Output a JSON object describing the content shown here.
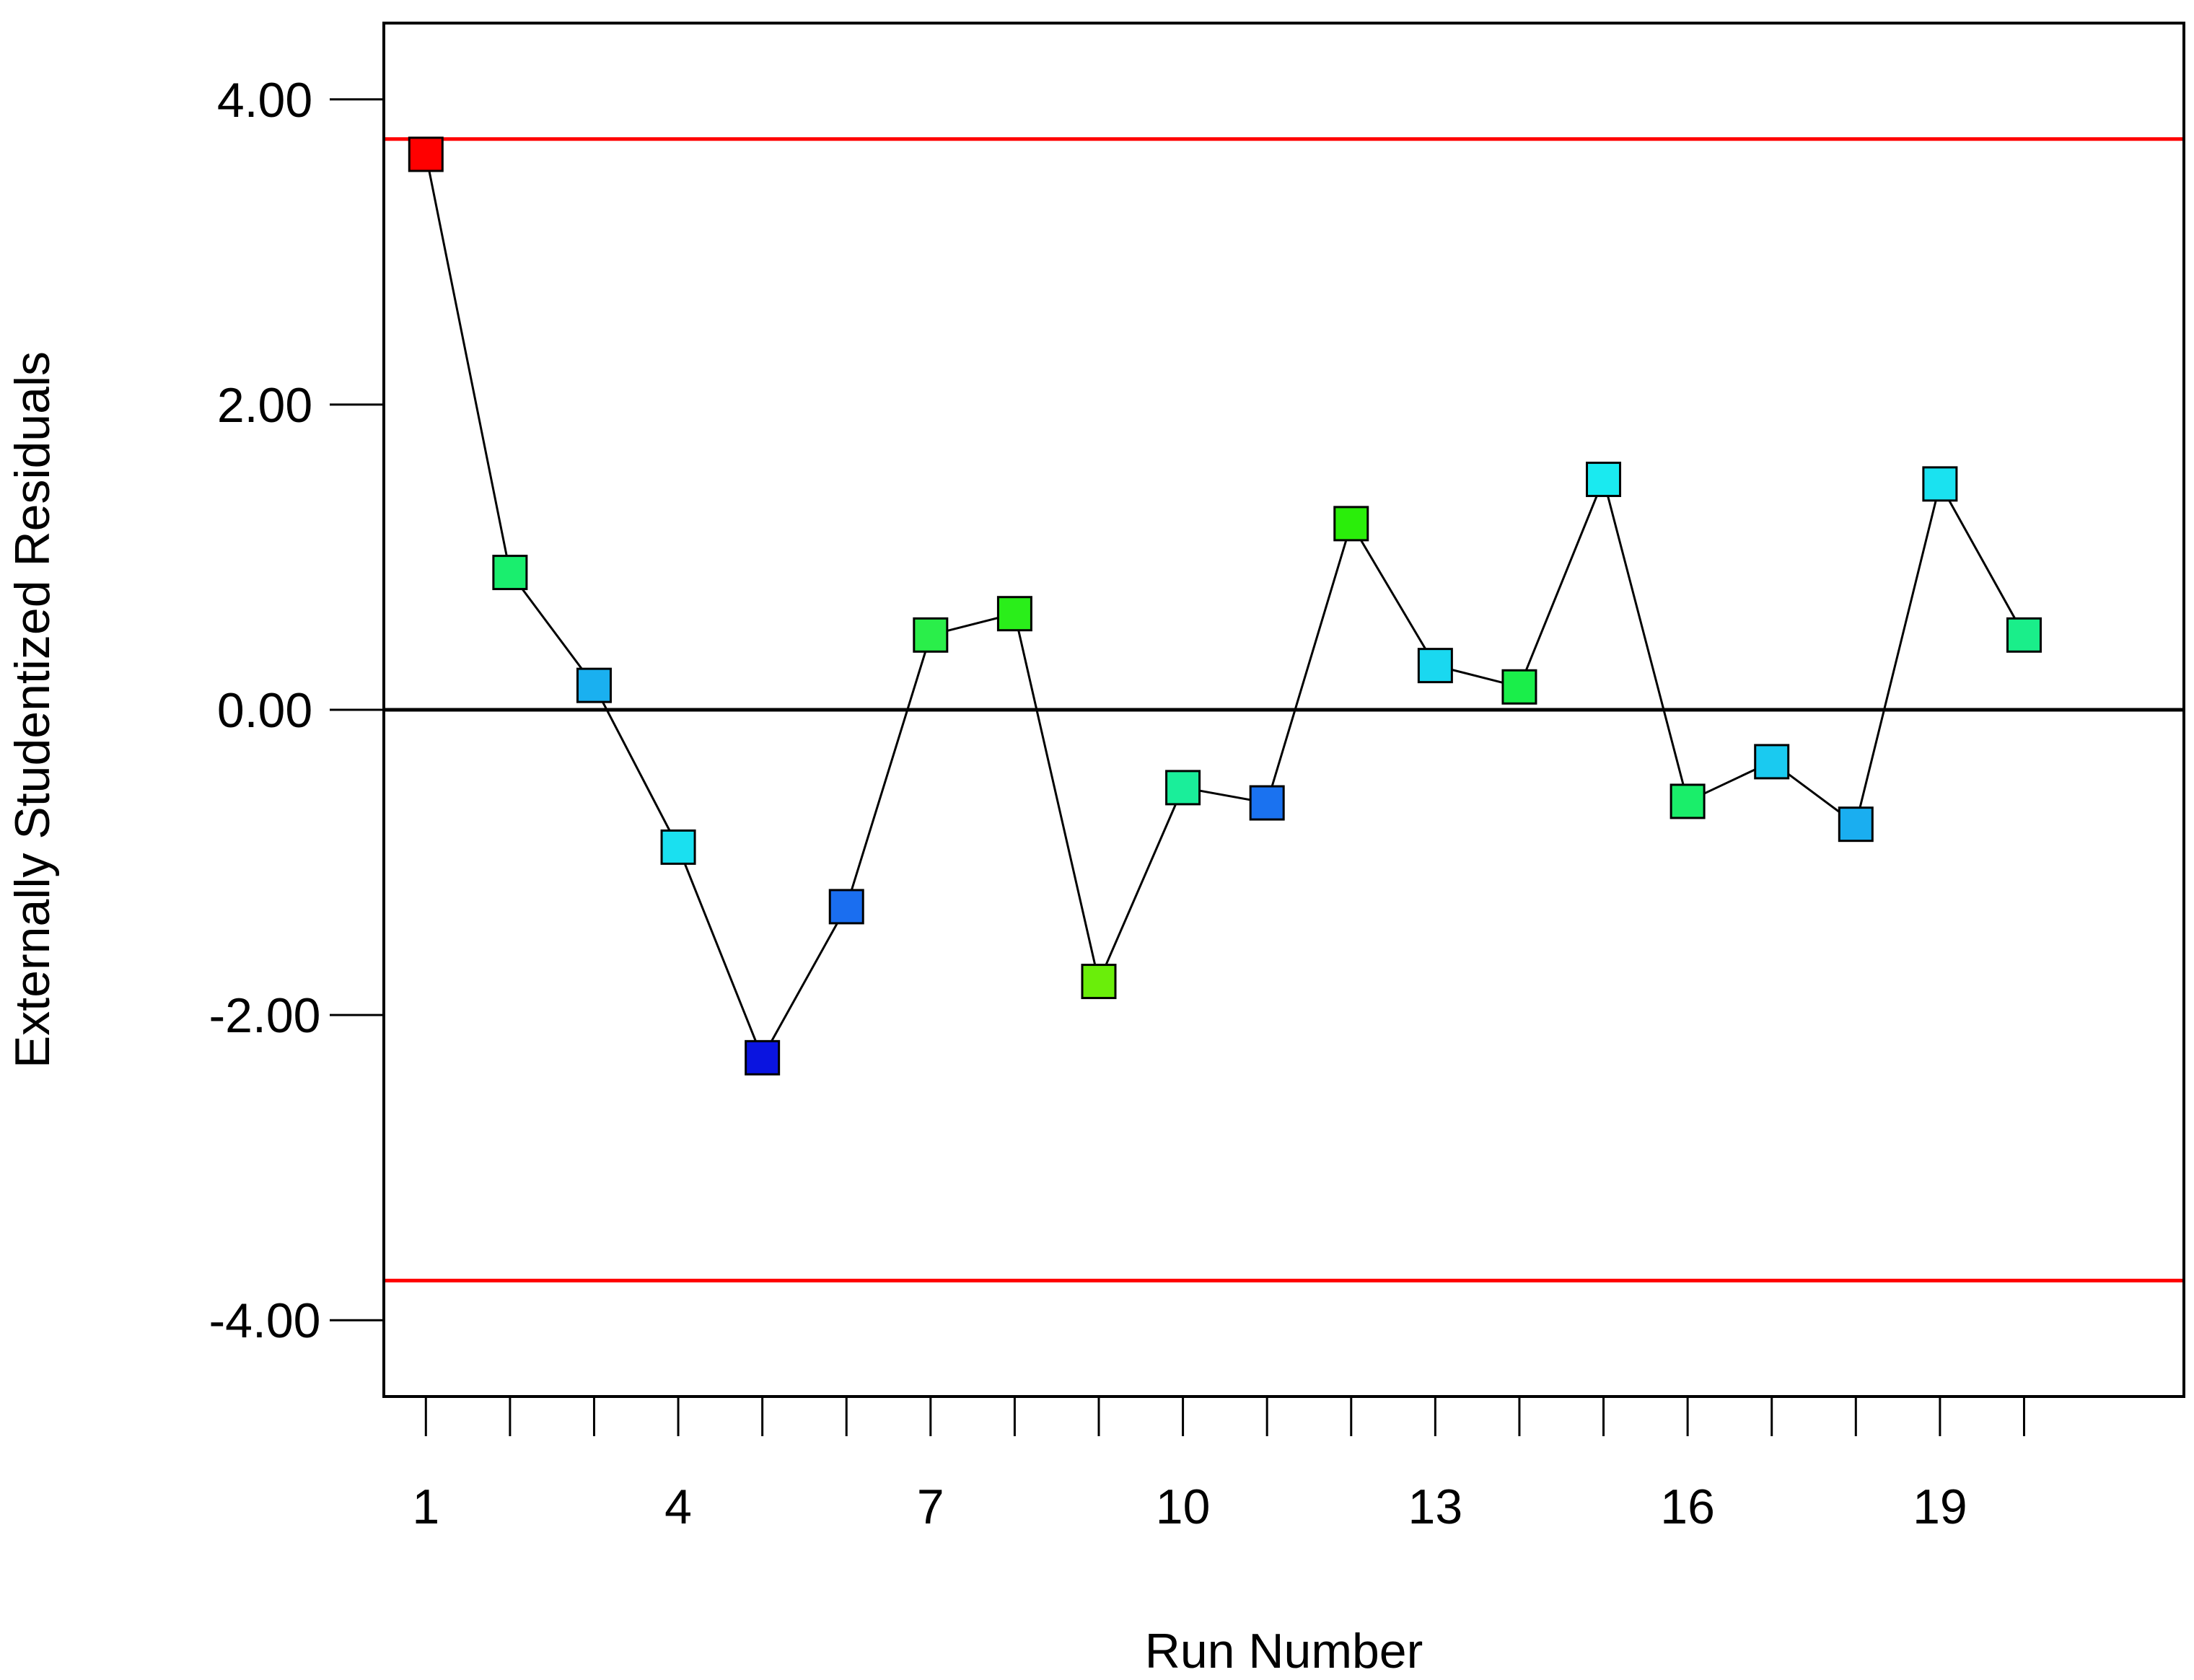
{
  "chart_data": {
    "type": "line",
    "title": "",
    "xlabel": "Run Number",
    "ylabel": "Externally Studentized Residuals",
    "xlim": [
      0.5,
      21.9
    ],
    "ylim": [
      -4.5,
      4.5
    ],
    "x_tick_labels": [
      "1",
      "4",
      "7",
      "10",
      "13",
      "16",
      "19"
    ],
    "y_tick_labels": [
      "4.00",
      "2.00",
      "0.00",
      "-2.00",
      "-4.00"
    ],
    "x_ticks": [
      1,
      2,
      3,
      4,
      5,
      6,
      7,
      8,
      9,
      10,
      11,
      12,
      13,
      14,
      15,
      16,
      17,
      18,
      19,
      20
    ],
    "y_ticks": [
      4,
      2,
      0,
      -2,
      -4
    ],
    "reference_lines": [
      {
        "name": "upper limit",
        "y": 3.74,
        "color": "#ff0000"
      },
      {
        "name": "lower limit",
        "y": -3.74,
        "color": "#ff0000"
      },
      {
        "name": "zero",
        "y": 0,
        "color": "#000000"
      }
    ],
    "series": [
      {
        "x": [
          1,
          2,
          3,
          4,
          5,
          6,
          7,
          8,
          9,
          10,
          11,
          12,
          13,
          14,
          15,
          16,
          17,
          18,
          19,
          20
        ],
        "values": [
          3.64,
          0.9,
          0.16,
          -0.9,
          -2.28,
          -1.29,
          0.49,
          0.63,
          -1.78,
          -0.51,
          -0.61,
          1.22,
          0.29,
          0.15,
          1.51,
          -0.6,
          -0.34,
          -0.75,
          1.48,
          0.49
        ],
        "colors": [
          "#ff0000",
          "#1aee6e",
          "#1ab0f0",
          "#1ae0f0",
          "#0a14e0",
          "#1a6ef0",
          "#2aee4a",
          "#2aee1a",
          "#6aee0a",
          "#1aee9a",
          "#1a72f0",
          "#2aee0a",
          "#1ad8f0",
          "#1aee4a",
          "#1aeaf0",
          "#1aee6a",
          "#1acaf0",
          "#1aaef0",
          "#1ae2f0",
          "#1aee8a"
        ],
        "marker": "square",
        "line_color": "#000000"
      }
    ],
    "grid": false,
    "legend": "none"
  }
}
